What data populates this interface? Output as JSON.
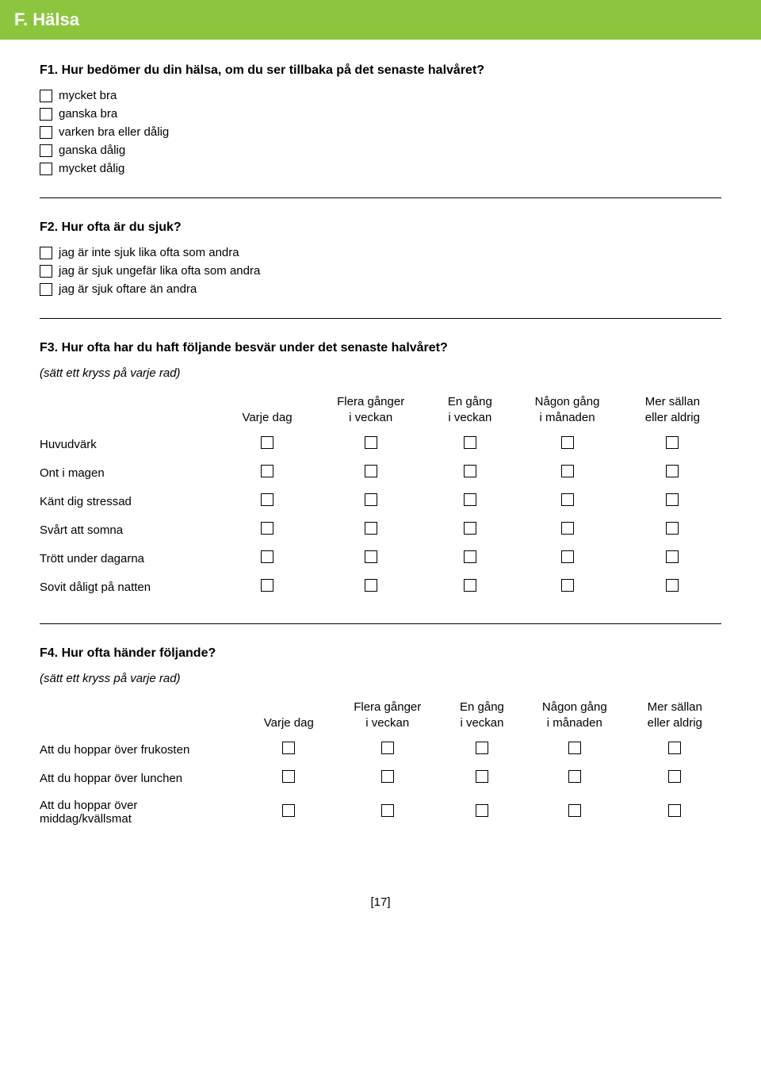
{
  "header": {
    "title": "F. Hälsa"
  },
  "f1": {
    "question": "F1. Hur bedömer du din hälsa, om du ser tillbaka på det senaste halvåret?",
    "options": [
      "mycket bra",
      "ganska bra",
      "varken bra eller dålig",
      "ganska dålig",
      "mycket dålig"
    ]
  },
  "f2": {
    "question": "F2. Hur ofta är du sjuk?",
    "options": [
      "jag är inte sjuk lika ofta som andra",
      "jag är sjuk ungefär lika ofta som andra",
      "jag är sjuk oftare än andra"
    ]
  },
  "f3": {
    "question": "F3. Hur ofta har du haft följande besvär under det senaste halvåret?",
    "hint": "(sätt ett kryss på varje rad)",
    "columns": [
      "Varje dag",
      "Flera gånger\ni veckan",
      "En gång\ni veckan",
      "Någon gång\ni månaden",
      "Mer sällan\neller aldrig"
    ],
    "rows": [
      "Huvudvärk",
      "Ont i magen",
      "Känt dig stressad",
      "Svårt att somna",
      "Trött under dagarna",
      "Sovit dåligt på natten"
    ]
  },
  "f4": {
    "question": "F4. Hur ofta händer följande?",
    "hint": "(sätt ett kryss på varje rad)",
    "columns": [
      "Varje dag",
      "Flera gånger\ni veckan",
      "En gång\ni veckan",
      "Någon gång\ni månaden",
      "Mer sällan\neller aldrig"
    ],
    "rows": [
      "Att du hoppar över frukosten",
      "Att du hoppar över lunchen",
      "Att du hoppar över\nmiddag/kvällsmat"
    ]
  },
  "pageNumber": "[17]",
  "colors": {
    "headerBg": "#8cc63f",
    "headerText": "#ffffff",
    "text": "#000000",
    "background": "#ffffff"
  }
}
